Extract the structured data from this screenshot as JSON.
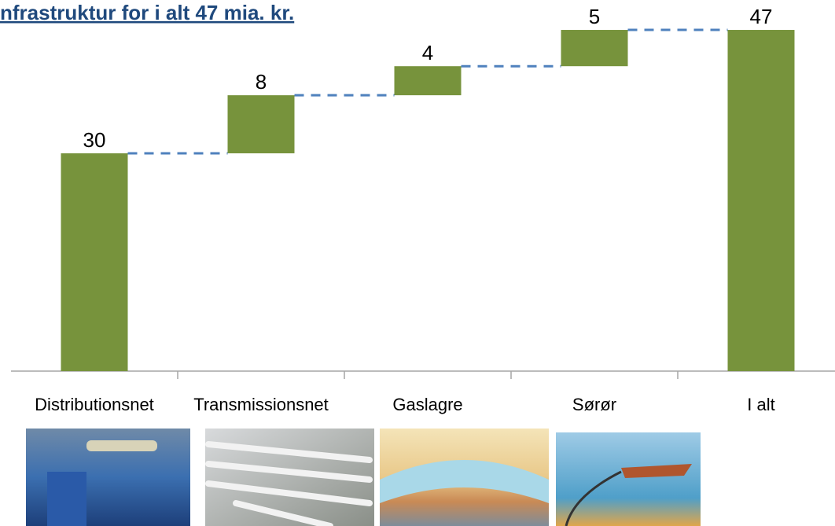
{
  "chart_data": {
    "type": "waterfall",
    "title": "nfrastruktur for i alt 47 mia. kr.",
    "categories": [
      "Distributionsnet",
      "Transmissionsnet",
      "Gaslagre",
      "Sørør",
      "I alt"
    ],
    "values": [
      30,
      8,
      4,
      5,
      47
    ],
    "color": "#77933c"
  }
}
